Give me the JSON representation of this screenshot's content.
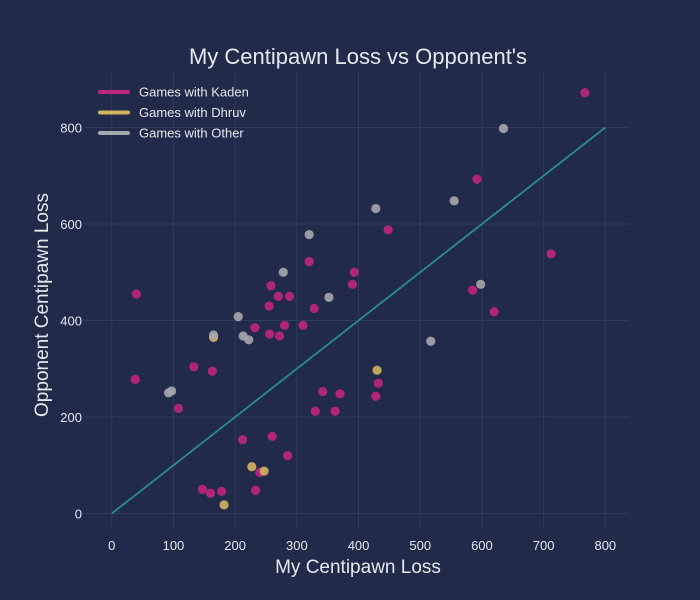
{
  "chart_data": {
    "type": "scatter",
    "title": "My Centipawn Loss vs Opponent's",
    "xlabel": "My Centipawn Loss",
    "ylabel": "Opponent Centipawn Loss",
    "xlim": [
      -45,
      840
    ],
    "ylim": [
      -30,
      915
    ],
    "x_ticks": [
      0,
      100,
      200,
      300,
      400,
      500,
      600,
      700,
      800
    ],
    "y_ticks": [
      0,
      200,
      400,
      600,
      800
    ],
    "grid": true,
    "legend_position": "top-left",
    "reference_line": {
      "x": [
        0,
        800
      ],
      "y": [
        0,
        800
      ],
      "color": "#2a8a96"
    },
    "series": [
      {
        "name": "Games with Kaden",
        "color": "#c0257e",
        "points": [
          [
            40,
            455
          ],
          [
            38,
            278
          ],
          [
            108,
            218
          ],
          [
            133,
            304
          ],
          [
            163,
            295
          ],
          [
            147,
            50
          ],
          [
            160,
            42
          ],
          [
            178,
            46
          ],
          [
            212,
            153
          ],
          [
            233,
            48
          ],
          [
            240,
            85
          ],
          [
            260,
            160
          ],
          [
            285,
            120
          ],
          [
            232,
            385
          ],
          [
            255,
            430
          ],
          [
            258,
            472
          ],
          [
            256,
            372
          ],
          [
            270,
            450
          ],
          [
            272,
            368
          ],
          [
            280,
            390
          ],
          [
            288,
            450
          ],
          [
            310,
            390
          ],
          [
            320,
            522
          ],
          [
            328,
            425
          ],
          [
            330,
            212
          ],
          [
            342,
            253
          ],
          [
            362,
            212
          ],
          [
            370,
            248
          ],
          [
            390,
            475
          ],
          [
            393,
            500
          ],
          [
            428,
            243
          ],
          [
            432,
            270
          ],
          [
            448,
            588
          ],
          [
            585,
            463
          ],
          [
            592,
            693
          ],
          [
            620,
            418
          ],
          [
            712,
            538
          ],
          [
            767,
            872
          ]
        ]
      },
      {
        "name": "Games with Dhruv",
        "color": "#d1b55e",
        "points": [
          [
            165,
            365
          ],
          [
            182,
            18
          ],
          [
            227,
            97
          ],
          [
            247,
            88
          ],
          [
            430,
            297
          ]
        ]
      },
      {
        "name": "Games with Other",
        "color": "#a6a6ae",
        "points": [
          [
            92,
            250
          ],
          [
            97,
            254
          ],
          [
            165,
            370
          ],
          [
            205,
            408
          ],
          [
            213,
            368
          ],
          [
            222,
            360
          ],
          [
            278,
            500
          ],
          [
            320,
            578
          ],
          [
            352,
            448
          ],
          [
            428,
            632
          ],
          [
            517,
            357
          ],
          [
            555,
            648
          ],
          [
            598,
            475
          ],
          [
            635,
            798
          ]
        ]
      }
    ]
  }
}
